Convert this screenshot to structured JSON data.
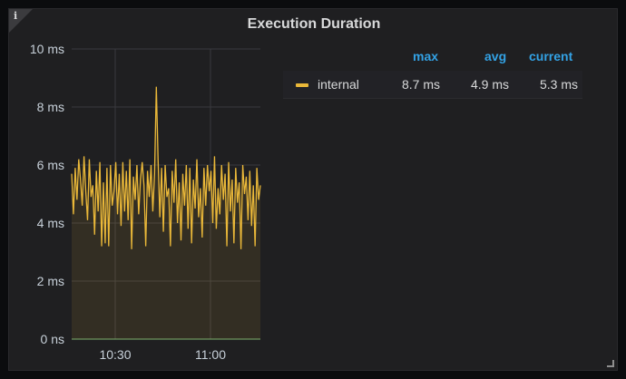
{
  "panel": {
    "title": "Execution Duration",
    "info_icon": "i"
  },
  "legend": {
    "headers": {
      "max": "max",
      "avg": "avg",
      "current": "current"
    },
    "series": [
      {
        "name": "internal",
        "max": "8.7 ms",
        "avg": "4.9 ms",
        "current": "5.3 ms",
        "color": "#eab839"
      }
    ]
  },
  "chart_data": {
    "type": "line",
    "title": "Execution Duration",
    "xlabel": "",
    "ylabel": "",
    "x_tick_labels": [
      "10:30",
      "11:00"
    ],
    "y_tick_labels": [
      "0 ns",
      "2 ms",
      "4 ms",
      "6 ms",
      "8 ms",
      "10 ms"
    ],
    "ylim": [
      0,
      10
    ],
    "grid": true,
    "legend_position": "right",
    "series": [
      {
        "name": "internal",
        "color": "#eab839",
        "fill": true,
        "values": [
          5.7,
          4.3,
          5.9,
          4.8,
          6.2,
          5.5,
          4.6,
          6.3,
          5.1,
          4.1,
          6.2,
          4.9,
          5.3,
          3.6,
          5.8,
          4.4,
          6.1,
          3.2,
          5.4,
          3.3,
          5.9,
          3.2,
          6.0,
          4.6,
          5.1,
          6.1,
          4.3,
          5.7,
          3.9,
          6.1,
          4.4,
          5.8,
          4.1,
          6.2,
          3.1,
          5.6,
          4.8,
          6.0,
          4.3,
          5.5,
          6.1,
          5.3,
          3.2,
          5.8,
          4.9,
          6.0,
          4.4,
          5.7,
          8.7,
          6.2,
          4.2,
          5.9,
          3.7,
          6.0,
          4.9,
          5.2,
          3.2,
          5.8,
          4.7,
          6.2,
          4.0,
          5.4,
          3.4,
          5.7,
          4.6,
          6.0,
          3.8,
          5.9,
          3.3,
          5.5,
          4.5,
          6.2,
          4.2,
          5.2,
          3.5,
          5.9,
          4.6,
          6.0,
          5.1,
          5.8,
          4.0,
          6.3,
          3.8,
          5.2,
          4.3,
          6.0,
          4.8,
          5.7,
          3.2,
          6.1,
          4.4,
          5.5,
          3.3,
          5.9,
          4.7,
          5.4,
          3.1,
          6.0,
          5.0,
          5.6,
          4.1,
          5.8,
          3.9,
          5.3,
          3.2,
          5.9,
          4.8,
          5.3
        ]
      }
    ]
  }
}
